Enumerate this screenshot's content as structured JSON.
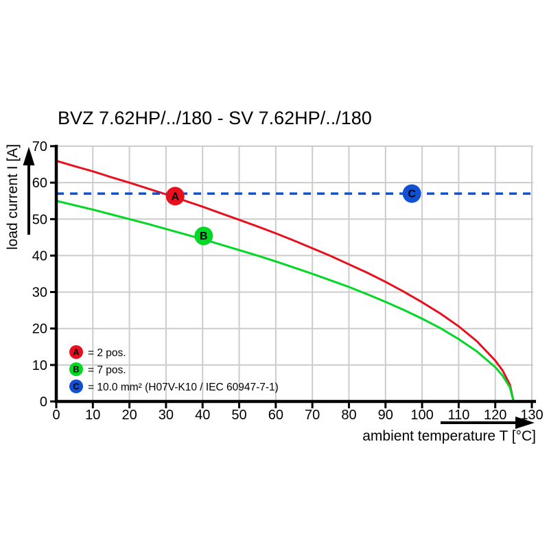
{
  "title": "BVZ 7.62HP/../180 - SV 7.62HP/../180",
  "colors": {
    "red": "#e8101e",
    "green": "#00d824",
    "blue": "#1150d2",
    "grid": "#cccccc",
    "axis": "#000000",
    "marker_letter": "#ffffff"
  },
  "chart_data": {
    "type": "line",
    "title": "BVZ 7.62HP/../180 - SV 7.62HP/../180",
    "xlabel": "ambient temperature T [°C]",
    "ylabel": "load current I [A]",
    "xlim": [
      0,
      130
    ],
    "ylim": [
      0,
      70
    ],
    "x_ticks": [
      0,
      10,
      20,
      30,
      40,
      50,
      60,
      70,
      80,
      90,
      100,
      110,
      120,
      130
    ],
    "y_ticks": [
      0,
      10,
      20,
      30,
      40,
      50,
      60,
      70
    ],
    "grid": true,
    "legend_position": "bottom-left",
    "series": [
      {
        "name": "A",
        "label": "2 pos.",
        "color": "#e8101e",
        "style": "solid",
        "x": [
          0,
          5,
          10,
          15,
          20,
          25,
          30,
          35,
          40,
          45,
          50,
          55,
          60,
          65,
          70,
          75,
          80,
          85,
          90,
          95,
          100,
          105,
          110,
          115,
          120,
          122,
          124,
          125
        ],
        "y": [
          66,
          64.5,
          63.1,
          61.5,
          60,
          58.4,
          56.8,
          55.1,
          53.4,
          51.6,
          49.8,
          48,
          46.1,
          44.1,
          42,
          39.9,
          37.6,
          35.3,
          32.8,
          30.1,
          27.2,
          24.1,
          20.6,
          16.5,
          11.2,
          8.5,
          4.6,
          0
        ]
      },
      {
        "name": "B",
        "label": "7 pos.",
        "color": "#00d824",
        "style": "solid",
        "x": [
          0,
          5,
          10,
          15,
          20,
          25,
          30,
          35,
          40,
          45,
          50,
          55,
          60,
          65,
          70,
          75,
          80,
          85,
          90,
          95,
          100,
          105,
          110,
          115,
          120,
          122,
          124,
          125
        ],
        "y": [
          55,
          53.8,
          52.6,
          51.3,
          50,
          48.7,
          47.3,
          45.9,
          44.5,
          43,
          41.5,
          40,
          38.4,
          36.7,
          35,
          33.2,
          31.4,
          29.4,
          27.3,
          25.1,
          22.7,
          20.1,
          17.1,
          13.7,
          9.4,
          7.1,
          3.9,
          0
        ]
      },
      {
        "name": "C",
        "label": "10.0 mm² (H07V-K10 / IEC 60947-7-1)",
        "color": "#1150d2",
        "style": "dashed",
        "x": [
          0,
          130
        ],
        "y": [
          57,
          57
        ]
      }
    ],
    "markers": [
      {
        "letter": "A",
        "x": 32.5,
        "y": 56.3,
        "color": "#e8101e"
      },
      {
        "letter": "B",
        "x": 40.3,
        "y": 45.4,
        "color": "#00d824"
      },
      {
        "letter": "C",
        "x": 97.2,
        "y": 57.0,
        "color": "#1150d2"
      }
    ],
    "legend": {
      "items": [
        {
          "letter": "A",
          "color": "#e8101e",
          "label": "= 2 pos."
        },
        {
          "letter": "B",
          "color": "#00d824",
          "label": "= 7 pos."
        },
        {
          "letter": "C",
          "color": "#1150d2",
          "label": "= 10.0 mm² (H07V-K10 / IEC 60947-7-1)"
        }
      ]
    }
  }
}
